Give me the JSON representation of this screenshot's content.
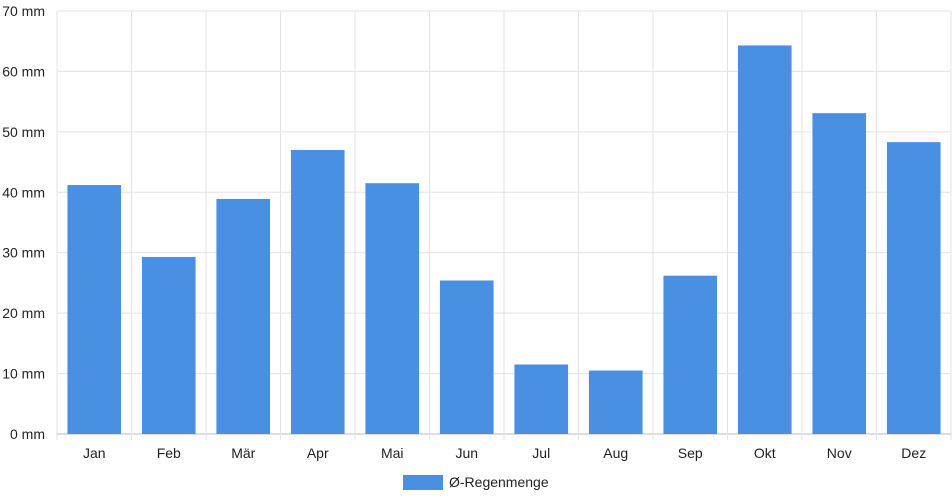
{
  "chart_data": {
    "type": "bar",
    "categories": [
      "Jan",
      "Feb",
      "Mär",
      "Apr",
      "Mai",
      "Jun",
      "Jul",
      "Aug",
      "Sep",
      "Okt",
      "Nov",
      "Dez"
    ],
    "series": [
      {
        "name": "Ø-Regenmenge",
        "values": [
          41.2,
          29.3,
          38.9,
          47.0,
          41.5,
          25.4,
          11.5,
          10.5,
          26.2,
          64.3,
          53.1,
          48.3
        ],
        "color": "#4a90e2"
      }
    ],
    "title": "",
    "xlabel": "",
    "ylabel": "",
    "ylim": [
      0,
      70
    ],
    "y_ticks": [
      0,
      10,
      20,
      30,
      40,
      50,
      60,
      70
    ],
    "y_tick_labels": [
      "0 mm",
      "10 mm",
      "20 mm",
      "30 mm",
      "40 mm",
      "50 mm",
      "60 mm",
      "70 mm"
    ],
    "grid": true,
    "legend_position": "bottom-center"
  }
}
